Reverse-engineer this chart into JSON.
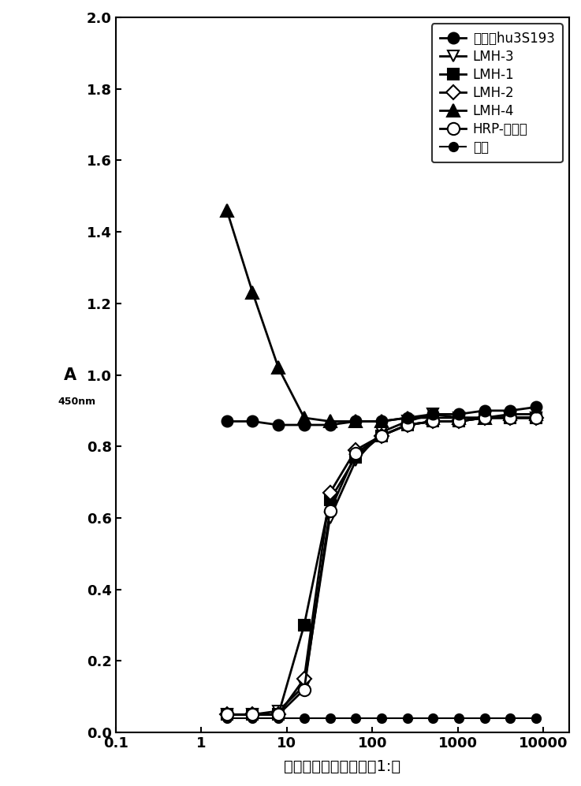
{
  "x_values": [
    2,
    4,
    8,
    16,
    32,
    64,
    128,
    256,
    512,
    1024,
    2048,
    4096,
    8192
  ],
  "series": [
    {
      "key": "hu3S193",
      "label": "单独的hu3S193",
      "marker": "o",
      "filled": true,
      "marker_size": 10,
      "linewidth": 2.0,
      "zorder": 5,
      "values": [
        0.87,
        0.87,
        0.86,
        0.86,
        0.86,
        0.87,
        0.87,
        0.88,
        0.89,
        0.89,
        0.9,
        0.9,
        0.91
      ]
    },
    {
      "key": "LMH3",
      "label": "LMH-3",
      "marker": "v",
      "filled": false,
      "marker_size": 10,
      "linewidth": 2.0,
      "zorder": 4,
      "values": [
        0.05,
        0.05,
        0.06,
        0.13,
        0.6,
        0.76,
        0.84,
        0.87,
        0.89,
        0.88,
        0.88,
        0.88,
        0.88
      ]
    },
    {
      "key": "LMH1",
      "label": "LMH-1",
      "marker": "s",
      "filled": true,
      "marker_size": 10,
      "linewidth": 2.0,
      "zorder": 4,
      "values": [
        0.05,
        0.05,
        0.05,
        0.3,
        0.65,
        0.77,
        0.83,
        0.86,
        0.87,
        0.87,
        0.88,
        0.88,
        0.88
      ]
    },
    {
      "key": "LMH2",
      "label": "LMH-2",
      "marker": "D",
      "filled": false,
      "marker_size": 9,
      "linewidth": 2.0,
      "zorder": 4,
      "values": [
        0.05,
        0.05,
        0.05,
        0.15,
        0.67,
        0.79,
        0.83,
        0.86,
        0.87,
        0.87,
        0.88,
        0.88,
        0.88
      ]
    },
    {
      "key": "LMH4",
      "label": "LMH-4",
      "marker": "^",
      "filled": true,
      "marker_size": 11,
      "linewidth": 2.0,
      "zorder": 4,
      "values": [
        1.46,
        1.23,
        1.02,
        0.88,
        0.87,
        0.87,
        0.87,
        0.88,
        0.88,
        0.88,
        0.88,
        0.89,
        0.89
      ]
    },
    {
      "key": "HRP",
      "label": "HRP-缓合物",
      "marker": "o",
      "filled": false,
      "marker_size": 11,
      "linewidth": 2.0,
      "zorder": 4,
      "values": [
        0.05,
        0.05,
        0.05,
        0.12,
        0.62,
        0.78,
        0.83,
        0.86,
        0.87,
        0.87,
        0.88,
        0.88,
        0.88
      ]
    },
    {
      "key": "substrate",
      "label": "底物",
      "marker": "o",
      "filled": true,
      "marker_size": 8,
      "linewidth": 1.5,
      "zorder": 3,
      "values": [
        0.04,
        0.04,
        0.04,
        0.04,
        0.04,
        0.04,
        0.04,
        0.04,
        0.04,
        0.04,
        0.04,
        0.04,
        0.04
      ]
    }
  ],
  "xlabel": "抗独特型抗体的稿释（1:）",
  "ylabel_A": "A",
  "ylabel_sub": "450nm",
  "xlim": [
    0.13,
    20000
  ],
  "ylim": [
    0.0,
    2.0
  ],
  "yticks": [
    0.0,
    0.2,
    0.4,
    0.6,
    0.8,
    1.0,
    1.2,
    1.4,
    1.6,
    1.8,
    2.0
  ],
  "xtick_labels": [
    "0.1",
    "1",
    "10",
    "100",
    "1000",
    "10000"
  ],
  "xtick_positions": [
    0.1,
    1,
    10,
    100,
    1000,
    10000
  ],
  "figsize": [
    7.37,
    9.97
  ],
  "dpi": 100,
  "legend_fontsize": 12,
  "tick_fontsize": 13,
  "xlabel_fontsize": 14,
  "ylabel_fontsize": 15
}
